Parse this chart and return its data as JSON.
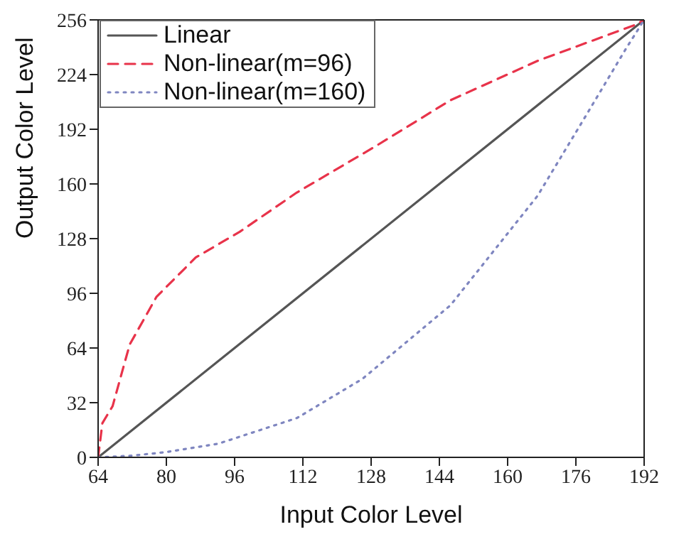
{
  "chart_data": {
    "type": "line",
    "xlabel": "Input Color Level",
    "ylabel": "Output Color Level",
    "xlim": [
      64,
      192
    ],
    "ylim": [
      0,
      256
    ],
    "xticks": [
      64,
      80,
      96,
      112,
      128,
      144,
      160,
      176,
      192
    ],
    "yticks": [
      0,
      32,
      64,
      96,
      128,
      160,
      192,
      224,
      256
    ],
    "grid": false,
    "legend": "top left",
    "marker": "none",
    "series": [
      {
        "name": "Linear",
        "color": "#555555",
        "line_style": "solid",
        "x": [
          64,
          192
        ],
        "values": [
          0,
          256
        ]
      },
      {
        "name": "Non-linear(m=96)",
        "color": "#e8334a",
        "line_style": "dashed",
        "x": [
          64,
          65,
          67.4,
          71.4,
          77.7,
          86.9,
          97.2,
          110.6,
          129,
          146.6,
          167,
          189.8,
          192
        ],
        "values": [
          0,
          20,
          30,
          66,
          94,
          117,
          132,
          155,
          182,
          209,
          232,
          253,
          256
        ]
      },
      {
        "name": "Non-linear(m=160)",
        "color": "#7f86c0",
        "line_style": "dotted",
        "x": [
          64,
          72,
          79.7,
          92.2,
          110.6,
          126,
          146.6,
          167,
          177.4,
          187.7,
          192
        ],
        "values": [
          0,
          1,
          3,
          8,
          23,
          46,
          89,
          153,
          196,
          239,
          256
        ]
      }
    ]
  }
}
